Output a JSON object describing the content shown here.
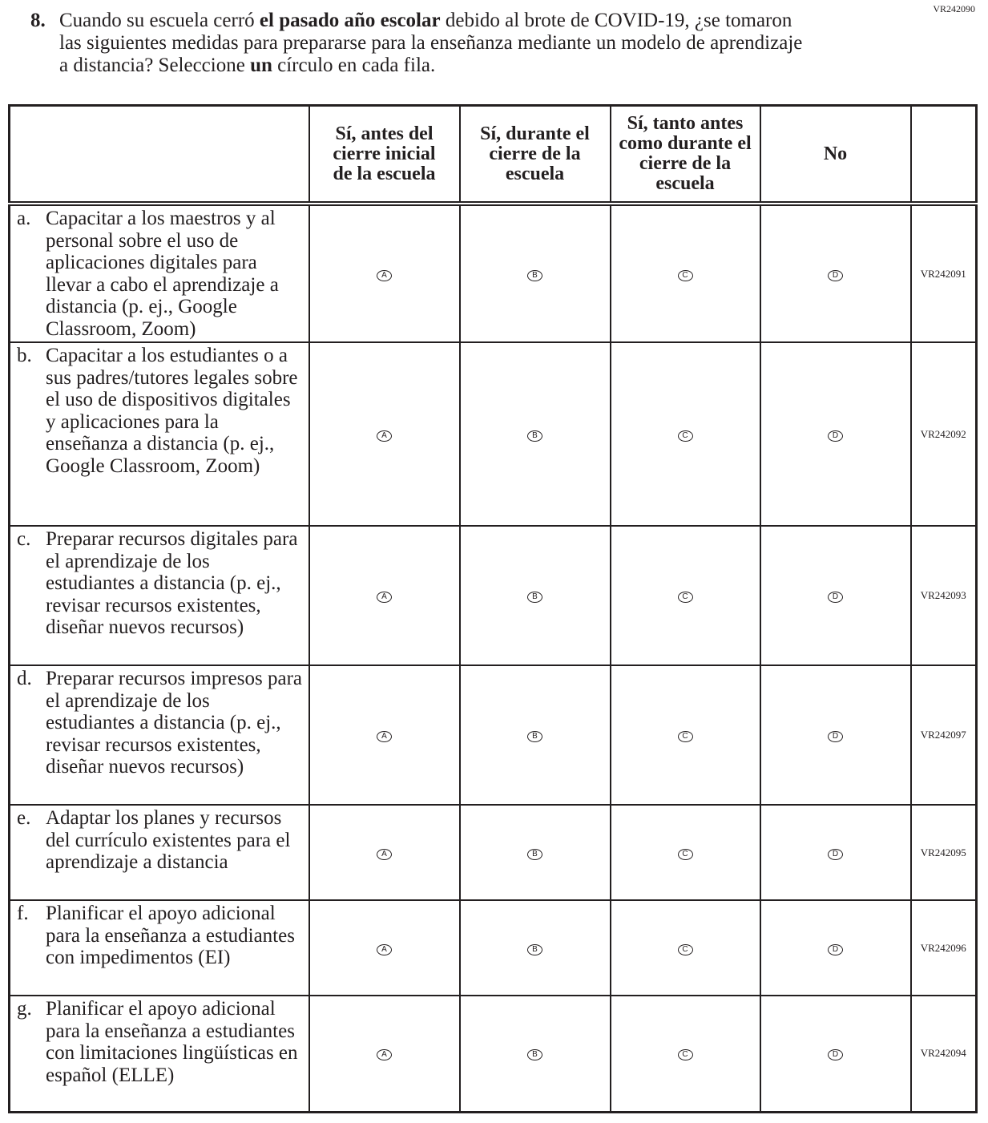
{
  "question": {
    "id": "VR242090",
    "number": "8.",
    "text_1": "Cuando su escuela cerró ",
    "text_bold_1": "el pasado año escolar",
    "text_2": " debido al brote de COVID-19, ¿se tomaron las siguientes medidas para prepararse para la enseñanza mediante un modelo de aprendizaje a distancia? Seleccione ",
    "text_bold_2": "un",
    "text_3": " círculo en cada fila."
  },
  "columns": [
    "Sí, antes del cierre inicial de la escuela",
    "Sí, durante el cierre de la escuela",
    "Sí, tanto antes como durante el cierre de la escuela",
    "No"
  ],
  "bubbles": [
    "A",
    "B",
    "C",
    "D"
  ],
  "rows": [
    {
      "letter": "a.",
      "text": "Capacitar a los maestros y al personal sobre el uso de aplicaciones digitales para llevar a cabo el aprendizaje a distancia (p. ej., Google Classroom, Zoom)",
      "code": "VR242091"
    },
    {
      "letter": "b.",
      "text": "Capacitar a los estudiantes o a sus padres/tutores legales sobre el uso de dispositivos digitales y aplicaciones para la enseñanza a distancia (p. ej., Google Classroom, Zoom)",
      "code": "VR242092"
    },
    {
      "letter": "c.",
      "text": "Preparar recursos digitales para el aprendizaje de los estudiantes a distancia (p. ej., revisar recursos existentes, diseñar nuevos recursos)",
      "code": "VR242093"
    },
    {
      "letter": "d.",
      "text": "Preparar recursos impresos para el aprendizaje de los estudiantes a distancia (p. ej., revisar recursos existentes, diseñar nuevos recursos)",
      "code": "VR242097"
    },
    {
      "letter": "e.",
      "text": "Adaptar los planes y recursos del currículo existentes para el aprendizaje a distancia",
      "code": "VR242095"
    },
    {
      "letter": "f.",
      "text": "Planificar el apoyo adicional para la enseñanza a estudiantes con impedimentos (EI)",
      "code": "VR242096"
    },
    {
      "letter": "g.",
      "text": "Planificar el apoyo adicional para la enseñanza a estudiantes con limitaciones lingüísticas en español (ELLE)",
      "code": "VR242094"
    }
  ]
}
